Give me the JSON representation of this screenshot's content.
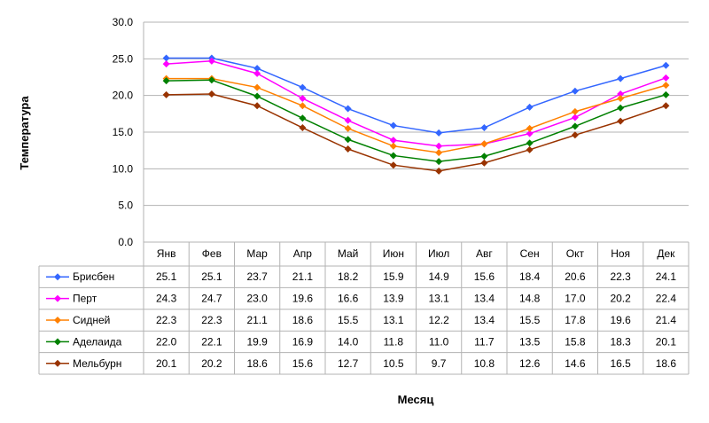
{
  "chart_data": {
    "type": "line",
    "title": "",
    "xlabel": "Месяц",
    "ylabel": "Температура",
    "ylim": [
      0,
      30
    ],
    "yticks": [
      "0.0",
      "5.0",
      "10.0",
      "15.0",
      "20.0",
      "25.0",
      "30.0"
    ],
    "grid": true,
    "legend": "data-table-left",
    "categories": [
      "Янв",
      "Фев",
      "Мар",
      "Апр",
      "Май",
      "Июн",
      "Июл",
      "Авг",
      "Сен",
      "Окт",
      "Ноя",
      "Дек"
    ],
    "series": [
      {
        "name": "Брисбен",
        "color": "#3366ff",
        "values": [
          25.1,
          25.1,
          23.7,
          21.1,
          18.2,
          15.9,
          14.9,
          15.6,
          18.4,
          20.6,
          22.3,
          24.1
        ]
      },
      {
        "name": "Перт",
        "color": "#ff00ff",
        "values": [
          24.3,
          24.7,
          23.0,
          19.6,
          16.6,
          13.9,
          13.1,
          13.4,
          14.8,
          17.0,
          20.2,
          22.4
        ]
      },
      {
        "name": "Сидней",
        "color": "#ff8000",
        "values": [
          22.3,
          22.3,
          21.1,
          18.6,
          15.5,
          13.1,
          12.2,
          13.4,
          15.5,
          17.8,
          19.6,
          21.4
        ]
      },
      {
        "name": "Аделаида",
        "color": "#008000",
        "values": [
          22.0,
          22.1,
          19.9,
          16.9,
          14.0,
          11.8,
          11.0,
          11.7,
          13.5,
          15.8,
          18.3,
          20.1
        ]
      },
      {
        "name": "Мельбурн",
        "color": "#993300",
        "values": [
          20.1,
          20.2,
          18.6,
          15.6,
          12.7,
          10.5,
          9.7,
          10.8,
          12.6,
          14.6,
          16.5,
          18.6
        ]
      }
    ]
  }
}
